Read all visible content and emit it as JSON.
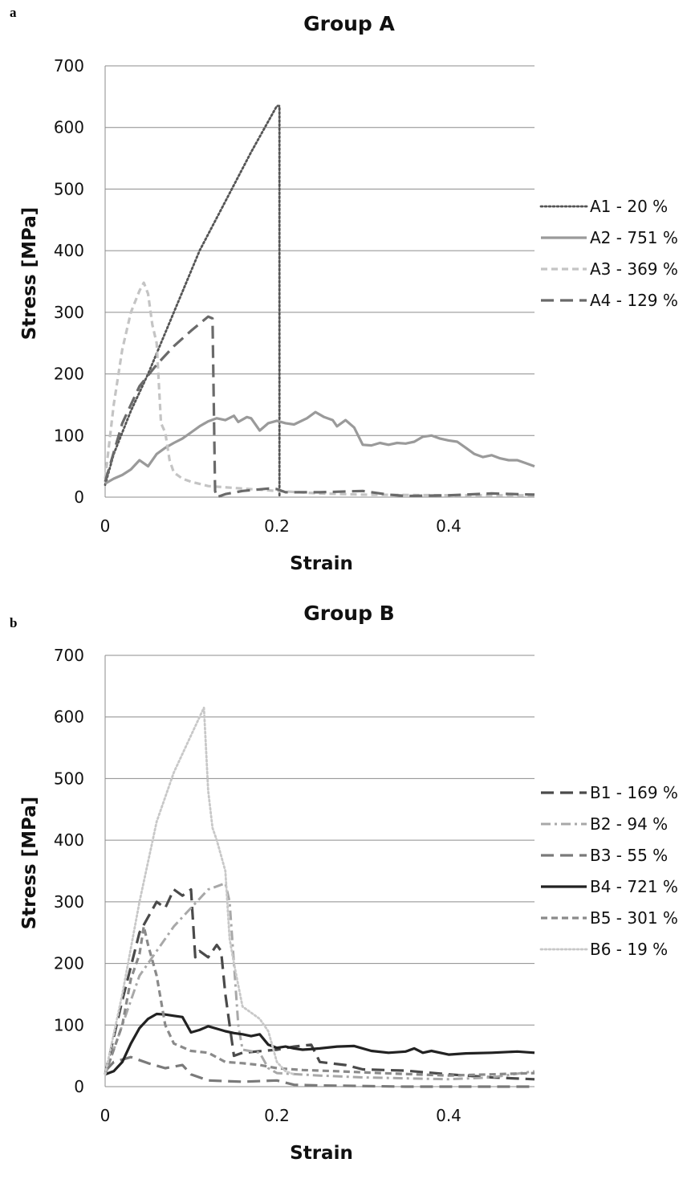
{
  "chart_data": [
    {
      "panel_letter": "a",
      "type": "line",
      "title": "Group A",
      "xlabel": "Strain",
      "ylabel": "Stress [MPa]",
      "xlim": [
        0,
        0.5
      ],
      "ylim": [
        0,
        700
      ],
      "x_ticks": [
        "0",
        "0.2",
        "0.4"
      ],
      "y_ticks": [
        "0",
        "100",
        "200",
        "300",
        "400",
        "500",
        "600",
        "700"
      ],
      "grid": "horizontal",
      "legend_position": "right",
      "series": [
        {
          "name": "A1 - 20 %",
          "style": "dotted",
          "color": "#555555",
          "points": [
            [
              0,
              20
            ],
            [
              0.01,
              70
            ],
            [
              0.03,
              140
            ],
            [
              0.05,
              200
            ],
            [
              0.08,
              300
            ],
            [
              0.11,
              400
            ],
            [
              0.14,
              480
            ],
            [
              0.17,
              560
            ],
            [
              0.2,
              635
            ],
            [
              0.203,
              635
            ],
            [
              0.203,
              0
            ]
          ]
        },
        {
          "name": "A2 - 751 %",
          "style": "solid",
          "color": "#9a9a9a",
          "points": [
            [
              0,
              22
            ],
            [
              0.01,
              30
            ],
            [
              0.02,
              36
            ],
            [
              0.03,
              45
            ],
            [
              0.04,
              60
            ],
            [
              0.045,
              55
            ],
            [
              0.05,
              50
            ],
            [
              0.06,
              70
            ],
            [
              0.07,
              80
            ],
            [
              0.08,
              88
            ],
            [
              0.09,
              95
            ],
            [
              0.1,
              105
            ],
            [
              0.11,
              115
            ],
            [
              0.12,
              123
            ],
            [
              0.13,
              128
            ],
            [
              0.14,
              125
            ],
            [
              0.15,
              132
            ],
            [
              0.155,
              122
            ],
            [
              0.165,
              130
            ],
            [
              0.17,
              128
            ],
            [
              0.18,
              108
            ],
            [
              0.19,
              120
            ],
            [
              0.2,
              124
            ],
            [
              0.21,
              120
            ],
            [
              0.22,
              118
            ],
            [
              0.235,
              128
            ],
            [
              0.245,
              138
            ],
            [
              0.255,
              130
            ],
            [
              0.265,
              125
            ],
            [
              0.27,
              115
            ],
            [
              0.28,
              125
            ],
            [
              0.29,
              113
            ],
            [
              0.3,
              85
            ],
            [
              0.31,
              84
            ],
            [
              0.32,
              88
            ],
            [
              0.33,
              85
            ],
            [
              0.34,
              88
            ],
            [
              0.35,
              87
            ],
            [
              0.36,
              90
            ],
            [
              0.37,
              98
            ],
            [
              0.38,
              100
            ],
            [
              0.39,
              95
            ],
            [
              0.4,
              92
            ],
            [
              0.41,
              90
            ],
            [
              0.42,
              80
            ],
            [
              0.43,
              70
            ],
            [
              0.44,
              65
            ],
            [
              0.45,
              68
            ],
            [
              0.46,
              63
            ],
            [
              0.47,
              60
            ],
            [
              0.48,
              60
            ],
            [
              0.49,
              55
            ],
            [
              0.5,
              50
            ]
          ]
        },
        {
          "name": "A3 - 369 %",
          "style": "dashed",
          "color": "#c4c4c4",
          "points": [
            [
              0,
              30
            ],
            [
              0.01,
              150
            ],
            [
              0.02,
              240
            ],
            [
              0.03,
              300
            ],
            [
              0.04,
              335
            ],
            [
              0.045,
              348
            ],
            [
              0.05,
              330
            ],
            [
              0.055,
              280
            ],
            [
              0.06,
              250
            ],
            [
              0.065,
              120
            ],
            [
              0.07,
              105
            ],
            [
              0.075,
              60
            ],
            [
              0.08,
              40
            ],
            [
              0.09,
              30
            ],
            [
              0.1,
              25
            ],
            [
              0.12,
              18
            ],
            [
              0.15,
              15
            ],
            [
              0.18,
              12
            ],
            [
              0.2,
              10
            ],
            [
              0.25,
              6
            ],
            [
              0.3,
              4
            ],
            [
              0.4,
              3
            ],
            [
              0.5,
              3
            ]
          ]
        },
        {
          "name": "A4 - 129 %",
          "style": "longdash",
          "color": "#6a6a6a",
          "points": [
            [
              0,
              25
            ],
            [
              0.02,
              120
            ],
            [
              0.04,
              180
            ],
            [
              0.06,
              215
            ],
            [
              0.08,
              245
            ],
            [
              0.1,
              270
            ],
            [
              0.12,
              293
            ],
            [
              0.125,
              290
            ],
            [
              0.128,
              10
            ],
            [
              0.13,
              0
            ],
            [
              0.14,
              5
            ],
            [
              0.16,
              10
            ],
            [
              0.19,
              14
            ],
            [
              0.2,
              13
            ],
            [
              0.21,
              8
            ],
            [
              0.25,
              8
            ],
            [
              0.3,
              10
            ],
            [
              0.33,
              4
            ],
            [
              0.35,
              2
            ],
            [
              0.4,
              3
            ],
            [
              0.45,
              6
            ],
            [
              0.5,
              4
            ]
          ]
        }
      ]
    },
    {
      "panel_letter": "b",
      "type": "line",
      "title": "Group B",
      "xlabel": "Strain",
      "ylabel": "Stress [MPa]",
      "xlim": [
        0,
        0.5
      ],
      "ylim": [
        0,
        700
      ],
      "x_ticks": [
        "0",
        "0.2",
        "0.4"
      ],
      "y_ticks": [
        "0",
        "100",
        "200",
        "300",
        "400",
        "500",
        "600",
        "700"
      ],
      "grid": "horizontal",
      "legend_position": "right",
      "series": [
        {
          "name": "B1 - 169 %",
          "style": "longdash",
          "color": "#4a4a4a",
          "points": [
            [
              0,
              20
            ],
            [
              0.02,
              140
            ],
            [
              0.04,
              250
            ],
            [
              0.06,
              300
            ],
            [
              0.07,
              290
            ],
            [
              0.08,
              320
            ],
            [
              0.09,
              310
            ],
            [
              0.1,
              320
            ],
            [
              0.105,
              210
            ],
            [
              0.11,
              220
            ],
            [
              0.12,
              210
            ],
            [
              0.13,
              230
            ],
            [
              0.135,
              220
            ],
            [
              0.14,
              150
            ],
            [
              0.145,
              100
            ],
            [
              0.15,
              50
            ],
            [
              0.16,
              55
            ],
            [
              0.2,
              60
            ],
            [
              0.22,
              65
            ],
            [
              0.24,
              68
            ],
            [
              0.25,
              40
            ],
            [
              0.28,
              35
            ],
            [
              0.3,
              28
            ],
            [
              0.35,
              26
            ],
            [
              0.4,
              20
            ],
            [
              0.45,
              15
            ],
            [
              0.5,
              12
            ]
          ]
        },
        {
          "name": "B2 - 94 %",
          "style": "dashdot",
          "color": "#a8a8a8",
          "points": [
            [
              0,
              20
            ],
            [
              0.02,
              100
            ],
            [
              0.04,
              180
            ],
            [
              0.06,
              220
            ],
            [
              0.08,
              260
            ],
            [
              0.1,
              290
            ],
            [
              0.12,
              320
            ],
            [
              0.14,
              330
            ],
            [
              0.145,
              300
            ],
            [
              0.15,
              200
            ],
            [
              0.155,
              100
            ],
            [
              0.16,
              60
            ],
            [
              0.18,
              55
            ],
            [
              0.19,
              30
            ],
            [
              0.2,
              22
            ],
            [
              0.25,
              18
            ],
            [
              0.3,
              15
            ],
            [
              0.4,
              12
            ],
            [
              0.45,
              15
            ],
            [
              0.5,
              25
            ]
          ]
        },
        {
          "name": "B3 - 55 %",
          "style": "longdash",
          "color": "#7a7a7a",
          "points": [
            [
              0,
              25
            ],
            [
              0.01,
              40
            ],
            [
              0.03,
              48
            ],
            [
              0.05,
              38
            ],
            [
              0.07,
              30
            ],
            [
              0.09,
              35
            ],
            [
              0.1,
              20
            ],
            [
              0.12,
              10
            ],
            [
              0.16,
              8
            ],
            [
              0.2,
              10
            ],
            [
              0.22,
              3
            ],
            [
              0.25,
              2
            ],
            [
              0.35,
              0
            ],
            [
              0.5,
              0
            ]
          ]
        },
        {
          "name": "B4 - 721 %",
          "style": "solid",
          "color": "#222222",
          "points": [
            [
              0,
              20
            ],
            [
              0.01,
              25
            ],
            [
              0.02,
              40
            ],
            [
              0.03,
              70
            ],
            [
              0.04,
              95
            ],
            [
              0.05,
              110
            ],
            [
              0.06,
              118
            ],
            [
              0.07,
              117
            ],
            [
              0.08,
              115
            ],
            [
              0.09,
              113
            ],
            [
              0.1,
              88
            ],
            [
              0.11,
              92
            ],
            [
              0.12,
              98
            ],
            [
              0.13,
              94
            ],
            [
              0.14,
              90
            ],
            [
              0.15,
              87
            ],
            [
              0.16,
              85
            ],
            [
              0.17,
              82
            ],
            [
              0.18,
              85
            ],
            [
              0.19,
              68
            ],
            [
              0.2,
              63
            ],
            [
              0.21,
              65
            ],
            [
              0.22,
              62
            ],
            [
              0.23,
              60
            ],
            [
              0.25,
              62
            ],
            [
              0.27,
              65
            ],
            [
              0.29,
              66
            ],
            [
              0.31,
              58
            ],
            [
              0.33,
              55
            ],
            [
              0.35,
              57
            ],
            [
              0.36,
              62
            ],
            [
              0.37,
              55
            ],
            [
              0.38,
              58
            ],
            [
              0.4,
              52
            ],
            [
              0.42,
              54
            ],
            [
              0.45,
              55
            ],
            [
              0.48,
              57
            ],
            [
              0.5,
              55
            ]
          ]
        },
        {
          "name": "B5 - 301 %",
          "style": "dashed",
          "color": "#8a8a8a",
          "points": [
            [
              0,
              20
            ],
            [
              0.02,
              100
            ],
            [
              0.03,
              175
            ],
            [
              0.04,
              215
            ],
            [
              0.045,
              260
            ],
            [
              0.05,
              230
            ],
            [
              0.06,
              180
            ],
            [
              0.07,
              100
            ],
            [
              0.08,
              70
            ],
            [
              0.1,
              58
            ],
            [
              0.12,
              55
            ],
            [
              0.14,
              40
            ],
            [
              0.16,
              38
            ],
            [
              0.18,
              35
            ],
            [
              0.2,
              30
            ],
            [
              0.23,
              27
            ],
            [
              0.27,
              25
            ],
            [
              0.32,
              22
            ],
            [
              0.4,
              18
            ],
            [
              0.45,
              20
            ],
            [
              0.5,
              22
            ]
          ]
        },
        {
          "name": "B6 - 19 %",
          "style": "dotted",
          "color": "#c8c8c8",
          "points": [
            [
              0,
              20
            ],
            [
              0.02,
              150
            ],
            [
              0.04,
              300
            ],
            [
              0.06,
              430
            ],
            [
              0.08,
              510
            ],
            [
              0.1,
              570
            ],
            [
              0.11,
              600
            ],
            [
              0.115,
              615
            ],
            [
              0.12,
              480
            ],
            [
              0.125,
              420
            ],
            [
              0.13,
              400
            ],
            [
              0.14,
              350
            ],
            [
              0.145,
              240
            ],
            [
              0.15,
              200
            ],
            [
              0.16,
              130
            ],
            [
              0.17,
              120
            ],
            [
              0.18,
              110
            ],
            [
              0.19,
              90
            ],
            [
              0.2,
              40
            ],
            [
              0.21,
              25
            ],
            [
              0.22,
              20
            ]
          ]
        }
      ]
    }
  ]
}
